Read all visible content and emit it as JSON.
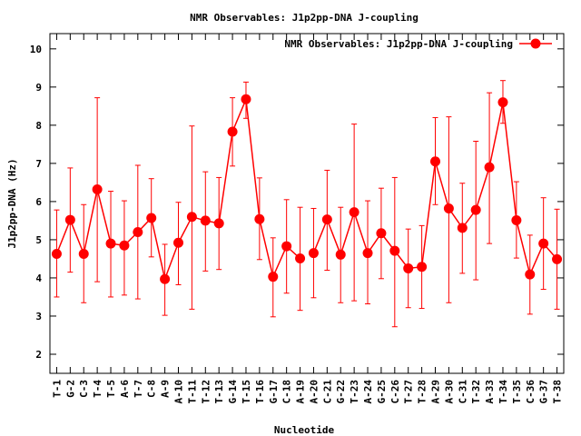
{
  "chart_data": {
    "type": "line",
    "title": "NMR Observables: J1p2pp-DNA J-coupling",
    "xlabel": "Nucleotide",
    "ylabel": "J1p2pp-DNA (Hz)",
    "ylim": [
      1.5,
      10.4
    ],
    "yticks": [
      2,
      3,
      4,
      5,
      6,
      7,
      8,
      9,
      10
    ],
    "legend": "top-right",
    "grid": false,
    "color": "#ff0000",
    "series": [
      {
        "name": "NMR Observables: J1p2pp-DNA J-coupling",
        "segments": [
          {
            "x": [
              1,
              2,
              3,
              4,
              5,
              6,
              7,
              8,
              9,
              10,
              11,
              12,
              13,
              14,
              15,
              16,
              17,
              18,
              19
            ],
            "categories": [
              "T-1",
              "G-2",
              "C-3",
              "T-4",
              "T-5",
              "A-6",
              "T-7",
              "C-8",
              "A-9",
              "A-10",
              "T-11",
              "T-12",
              "T-13",
              "G-14",
              "T-15",
              "T-16",
              "G-17",
              "C-18",
              "A-19"
            ],
            "values": [
              4.63,
              5.52,
              4.63,
              6.32,
              4.9,
              4.85,
              5.2,
              5.57,
              3.97,
              4.92,
              5.6,
              5.5,
              5.43,
              7.83,
              8.68,
              5.54,
              4.03,
              4.83,
              4.51
            ],
            "err_low": [
              3.5,
              4.15,
              3.35,
              3.9,
              3.5,
              3.55,
              3.45,
              4.55,
              3.02,
              3.82,
              3.18,
              4.18,
              4.22,
              6.93,
              8.18,
              4.48,
              2.98,
              3.6,
              3.15
            ],
            "err_high": [
              5.78,
              6.88,
              5.92,
              8.72,
              6.27,
              6.02,
              6.95,
              6.6,
              4.88,
              5.98,
              7.98,
              6.78,
              6.63,
              8.72,
              9.13,
              6.62,
              5.05,
              6.05,
              5.85
            ]
          },
          {
            "x": [
              20,
              21,
              22,
              23,
              24,
              25,
              26,
              27,
              28,
              29,
              30,
              31,
              32,
              33,
              34,
              35,
              36,
              37,
              38
            ],
            "categories": [
              "A-20",
              "C-21",
              "G-22",
              "T-23",
              "A-24",
              "G-25",
              "C-26",
              "T-27",
              "T-28",
              "A-29",
              "A-30",
              "C-31",
              "T-32",
              "A-33",
              "T-34",
              "T-35",
              "C-36",
              "G-37",
              "T-38"
            ],
            "values": [
              4.65,
              5.53,
              4.61,
              5.72,
              4.65,
              5.17,
              4.71,
              4.25,
              4.29,
              7.05,
              5.82,
              5.31,
              5.78,
              6.9,
              8.6,
              5.51,
              4.09,
              4.9,
              4.49
            ],
            "err_low": [
              3.48,
              4.2,
              3.35,
              3.4,
              3.32,
              3.98,
              2.72,
              3.22,
              3.2,
              5.92,
              3.35,
              4.12,
              3.95,
              4.9,
              8.05,
              4.52,
              3.05,
              3.7,
              3.18
            ],
            "err_high": [
              5.82,
              6.82,
              5.85,
              8.03,
              6.02,
              6.35,
              6.63,
              5.28,
              5.37,
              8.2,
              8.22,
              6.48,
              7.58,
              8.85,
              9.17,
              6.52,
              5.12,
              6.1,
              5.8
            ]
          }
        ]
      }
    ]
  }
}
